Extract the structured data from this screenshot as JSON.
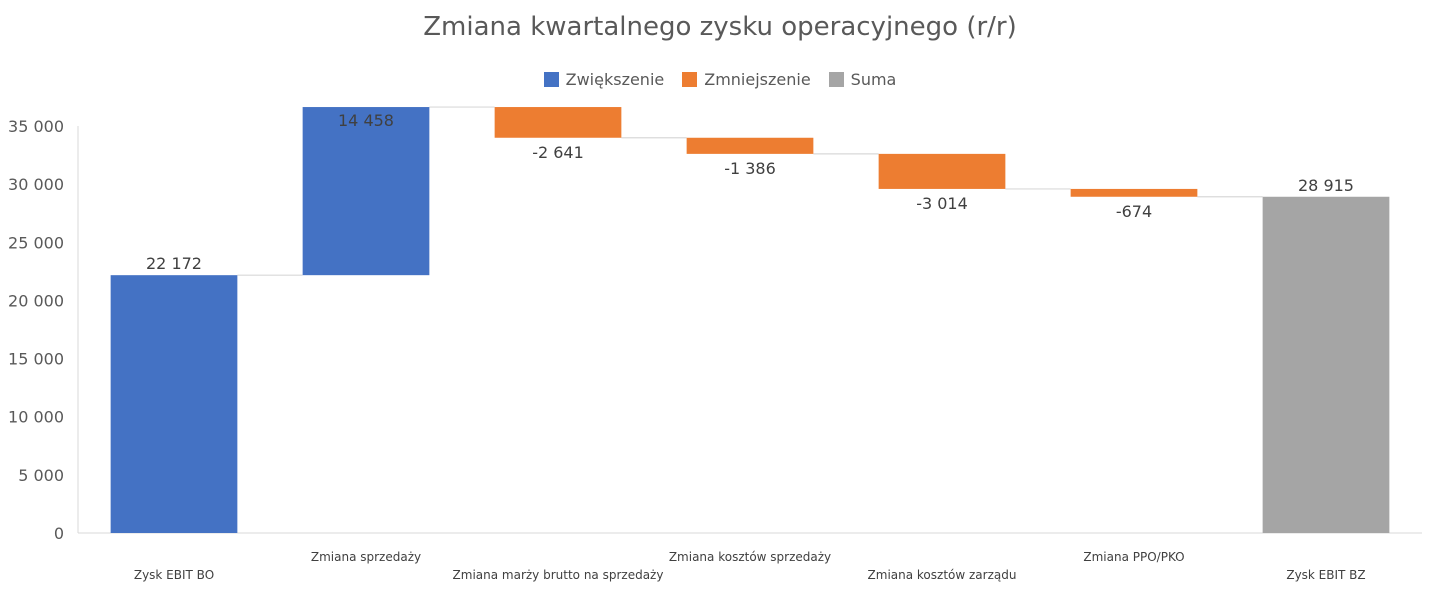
{
  "chart_data": {
    "type": "waterfall",
    "title": "Zmiana kwartalnego zysku operacyjnego (r/r)",
    "legend": {
      "placement": "top-center",
      "entries": [
        {
          "label": "Zwiększenie",
          "color": "#4472C4"
        },
        {
          "label": "Zmniejszenie",
          "color": "#ED7D31"
        },
        {
          "label": "Suma",
          "color": "#A5A5A5"
        }
      ]
    },
    "ylim": [
      0,
      35000
    ],
    "yticks": [
      0,
      5000,
      10000,
      15000,
      20000,
      25000,
      30000,
      35000
    ],
    "ytick_labels": [
      "0",
      "5 000",
      "10 000",
      "15 000",
      "20 000",
      "25 000",
      "30 000",
      "35 000"
    ],
    "grid": false,
    "categories": [
      "Zysk EBIT BO",
      "Zmiana sprzedaży",
      "Zmiana marży brutto na sprzedaży",
      "Zmiana kosztów sprzedaży",
      "Zmiana kosztów zarządu",
      "Zmiana PPO/PKO",
      "Zysk EBIT BZ"
    ],
    "values": [
      22172,
      14458,
      -2641,
      -1386,
      -3014,
      -674,
      28915
    ],
    "kinds": [
      "total",
      "increase",
      "decrease",
      "decrease",
      "decrease",
      "decrease",
      "total"
    ],
    "data_labels": [
      "22 172",
      "14 458",
      "-2 641",
      "-1 386",
      "-3 014",
      "-674",
      "28 915"
    ],
    "colors": {
      "increase": "#4472C4",
      "decrease": "#ED7D31",
      "total": "#A5A5A5",
      "first_total": "#4472C4"
    }
  }
}
